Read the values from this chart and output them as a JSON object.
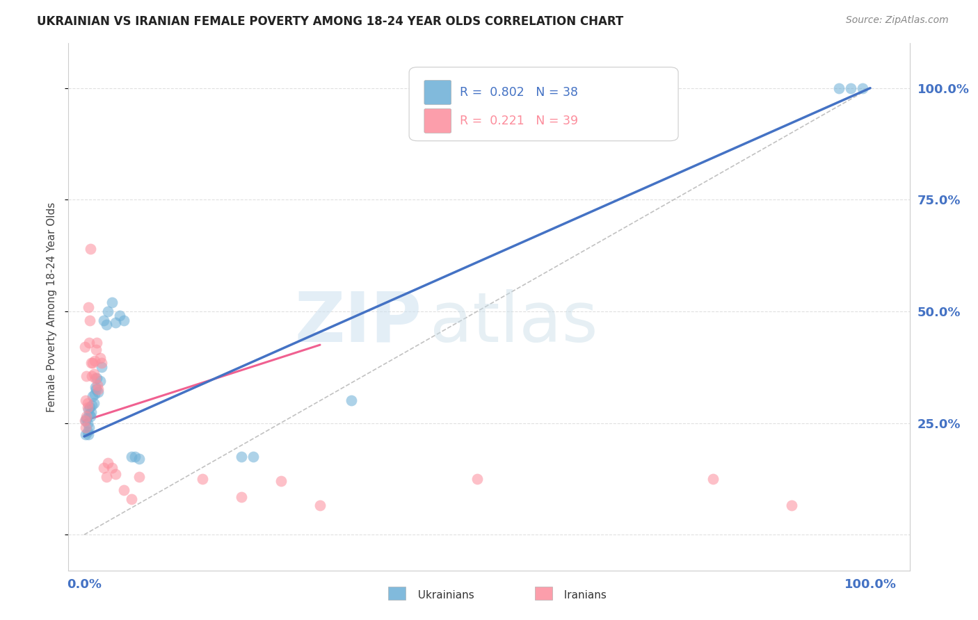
{
  "title": "UKRAINIAN VS IRANIAN FEMALE POVERTY AMONG 18-24 YEAR OLDS CORRELATION CHART",
  "source": "Source: ZipAtlas.com",
  "ylabel": "Female Poverty Among 18-24 Year Olds",
  "ukrainian_color": "#6baed6",
  "iranian_color": "#fc8d9c",
  "ukr_line_color": "#4472c4",
  "irn_line_color": "#f06090",
  "ukrainian_R": 0.802,
  "ukrainian_N": 38,
  "iranian_R": 0.221,
  "iranian_N": 39,
  "tick_color": "#4472c4",
  "axis_color": "#cccccc",
  "grid_color": "#dddddd",
  "ukr_points_x": [
    0.002,
    0.002,
    0.003,
    0.004,
    0.004,
    0.005,
    0.005,
    0.006,
    0.006,
    0.007,
    0.008,
    0.009,
    0.01,
    0.011,
    0.012,
    0.013,
    0.014,
    0.015,
    0.016,
    0.018,
    0.02,
    0.022,
    0.025,
    0.028,
    0.03,
    0.035,
    0.04,
    0.045,
    0.05,
    0.06,
    0.065,
    0.07,
    0.2,
    0.215,
    0.34,
    0.96,
    0.975,
    0.99
  ],
  "ukr_points_y": [
    0.255,
    0.225,
    0.26,
    0.25,
    0.23,
    0.28,
    0.225,
    0.27,
    0.24,
    0.285,
    0.265,
    0.275,
    0.29,
    0.31,
    0.295,
    0.315,
    0.33,
    0.325,
    0.35,
    0.32,
    0.345,
    0.375,
    0.48,
    0.47,
    0.5,
    0.52,
    0.475,
    0.49,
    0.48,
    0.175,
    0.175,
    0.17,
    0.175,
    0.175,
    0.3,
    1.0,
    1.0,
    1.0
  ],
  "irn_points_x": [
    0.001,
    0.001,
    0.002,
    0.002,
    0.003,
    0.003,
    0.004,
    0.004,
    0.005,
    0.006,
    0.007,
    0.008,
    0.009,
    0.01,
    0.011,
    0.012,
    0.013,
    0.014,
    0.015,
    0.016,
    0.017,
    0.018,
    0.02,
    0.022,
    0.025,
    0.028,
    0.03,
    0.035,
    0.04,
    0.05,
    0.06,
    0.07,
    0.15,
    0.2,
    0.25,
    0.3,
    0.5,
    0.8,
    0.9
  ],
  "irn_points_y": [
    0.255,
    0.42,
    0.24,
    0.3,
    0.265,
    0.355,
    0.285,
    0.295,
    0.51,
    0.43,
    0.48,
    0.64,
    0.385,
    0.355,
    0.385,
    0.36,
    0.39,
    0.35,
    0.415,
    0.43,
    0.335,
    0.325,
    0.395,
    0.385,
    0.15,
    0.13,
    0.16,
    0.15,
    0.135,
    0.1,
    0.08,
    0.13,
    0.125,
    0.085,
    0.12,
    0.065,
    0.125,
    0.125,
    0.065
  ],
  "ukr_line_x": [
    0.0,
    1.0
  ],
  "ukr_line_y": [
    0.22,
    1.0
  ],
  "irn_line_x": [
    0.0,
    0.3
  ],
  "irn_line_y": [
    0.255,
    0.425
  ],
  "diag_line_x": [
    0.0,
    1.0
  ],
  "diag_line_y": [
    0.0,
    1.0
  ],
  "xlim": [
    -0.02,
    1.05
  ],
  "ylim": [
    -0.08,
    1.1
  ],
  "yticks": [
    0.0,
    0.25,
    0.5,
    0.75,
    1.0
  ],
  "ytick_labels_right": [
    "",
    "25.0%",
    "50.0%",
    "75.0%",
    "100.0%"
  ],
  "xtick_labels": [
    "0.0%",
    "",
    "",
    "",
    "100.0%"
  ]
}
